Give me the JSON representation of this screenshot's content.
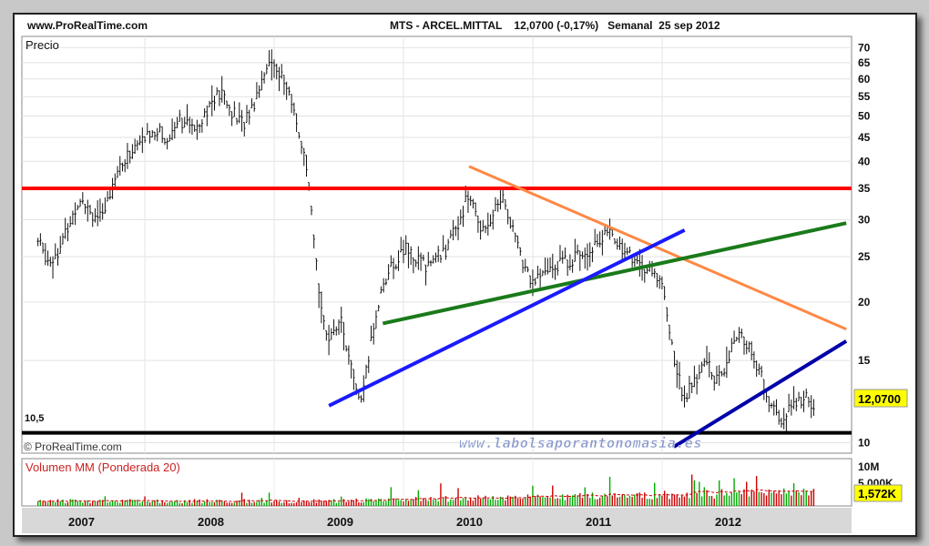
{
  "header": {
    "site": "www.ProRealTime.com",
    "title": "MTS - ARCEL.MITTAL    12,0700 (-0,17%)   Semanal  25 sep 2012"
  },
  "price_panel": {
    "label": "Precio",
    "support_label": "10,5",
    "copyright": "© ProRealTime.com",
    "watermark": "www.labolsaporantonomasia.es",
    "last_price": "12,0700"
  },
  "volume_panel": {
    "label": "Volumen MM (Ponderada 20)",
    "last_volume": "1,572K",
    "axis_labels": [
      "10M",
      "5,000K"
    ]
  },
  "colors": {
    "horizontal_resistance": "#ff0000",
    "support_line": "#000000",
    "downtrend_line": "#ff8844",
    "green_trendline": "#1a7a1a",
    "blue_trendline": "#1a1aff",
    "channel_line": "#0000aa",
    "price_bars": "#111111",
    "volume_up": "#00aa00",
    "volume_down": "#cc0000",
    "moving_average": "#cc0000",
    "label_box": "#ffff00"
  },
  "chart_data": {
    "type": "bar",
    "chart_style": "ohlc",
    "scale": "log",
    "ylim": [
      9.5,
      74
    ],
    "y_ticks": [
      10,
      15,
      20,
      25,
      30,
      35,
      40,
      45,
      50,
      55,
      60,
      65,
      70
    ],
    "x_ticks": [
      "2007",
      "2008",
      "2009",
      "2010",
      "2011",
      "2012"
    ],
    "grid": true,
    "price_path": [
      [
        "2006-09",
        27
      ],
      [
        "2006-10",
        24.5
      ],
      [
        "2006-11",
        26
      ],
      [
        "2007-01",
        34
      ],
      [
        "2007-02",
        31
      ],
      [
        "2007-03",
        30
      ],
      [
        "2007-04",
        37
      ],
      [
        "2007-05",
        40
      ],
      [
        "2007-06",
        43
      ],
      [
        "2007-08",
        47
      ],
      [
        "2007-09",
        44
      ],
      [
        "2007-10",
        50
      ],
      [
        "2007-11",
        47
      ],
      [
        "2007-12",
        49
      ],
      [
        "2008-01",
        53
      ],
      [
        "2008-02",
        56
      ],
      [
        "2008-03",
        51
      ],
      [
        "2008-04",
        48
      ],
      [
        "2008-05",
        53
      ],
      [
        "2008-06",
        63
      ],
      [
        "2008-07",
        65
      ],
      [
        "2008-08",
        58
      ],
      [
        "2008-09",
        49
      ],
      [
        "2008-10",
        37
      ],
      [
        "2008-11",
        22
      ],
      [
        "2008-12",
        16
      ],
      [
        "2009-01",
        19
      ],
      [
        "2009-02",
        14.5
      ],
      [
        "2009-03",
        12
      ],
      [
        "2009-04",
        17
      ],
      [
        "2009-05",
        22
      ],
      [
        "2009-06",
        24
      ],
      [
        "2009-07",
        26
      ],
      [
        "2009-09",
        24
      ],
      [
        "2009-11",
        26
      ],
      [
        "2010-01",
        34
      ],
      [
        "2010-02",
        29
      ],
      [
        "2010-03",
        30
      ],
      [
        "2010-04",
        34
      ],
      [
        "2010-05",
        29
      ],
      [
        "2010-06",
        24
      ],
      [
        "2010-07",
        22
      ],
      [
        "2010-09",
        24
      ],
      [
        "2010-11",
        25
      ],
      [
        "2011-01",
        27
      ],
      [
        "2011-02",
        28
      ],
      [
        "2011-04",
        25
      ],
      [
        "2011-06",
        23
      ],
      [
        "2011-07",
        22
      ],
      [
        "2011-08",
        15
      ],
      [
        "2011-09",
        12.5
      ],
      [
        "2011-10",
        13.5
      ],
      [
        "2011-11",
        15
      ],
      [
        "2011-12",
        13.5
      ],
      [
        "2012-02",
        17
      ],
      [
        "2012-03",
        16
      ],
      [
        "2012-04",
        14
      ],
      [
        "2012-05",
        12
      ],
      [
        "2012-06",
        11
      ],
      [
        "2012-07",
        12
      ],
      [
        "2012-08",
        12.5
      ],
      [
        "2012-09",
        12.07
      ]
    ],
    "series": [
      {
        "name": "Volumen MM (Ponderada 20)",
        "type": "bar",
        "unit": "shares"
      }
    ],
    "lines": [
      {
        "kind": "horizontal",
        "value": 35,
        "color": "#ff0000"
      },
      {
        "kind": "horizontal",
        "value": 10.5,
        "color": "#000000"
      },
      {
        "kind": "trend",
        "from": [
          "2010-01",
          39
        ],
        "to": [
          "2012-12",
          17.5
        ],
        "color": "#ff8844"
      },
      {
        "kind": "trend",
        "from": [
          "2009-05",
          18
        ],
        "to": [
          "2012-12",
          29.5
        ],
        "color": "#1a7a1a"
      },
      {
        "kind": "trend",
        "from": [
          "2008-12",
          12
        ],
        "to": [
          "2011-09",
          28.5
        ],
        "color": "#1a1aff"
      },
      {
        "kind": "trend",
        "from": [
          "2011-08",
          9.8
        ],
        "to": [
          "2012-12",
          16.5
        ],
        "color": "#0000aa"
      }
    ]
  }
}
